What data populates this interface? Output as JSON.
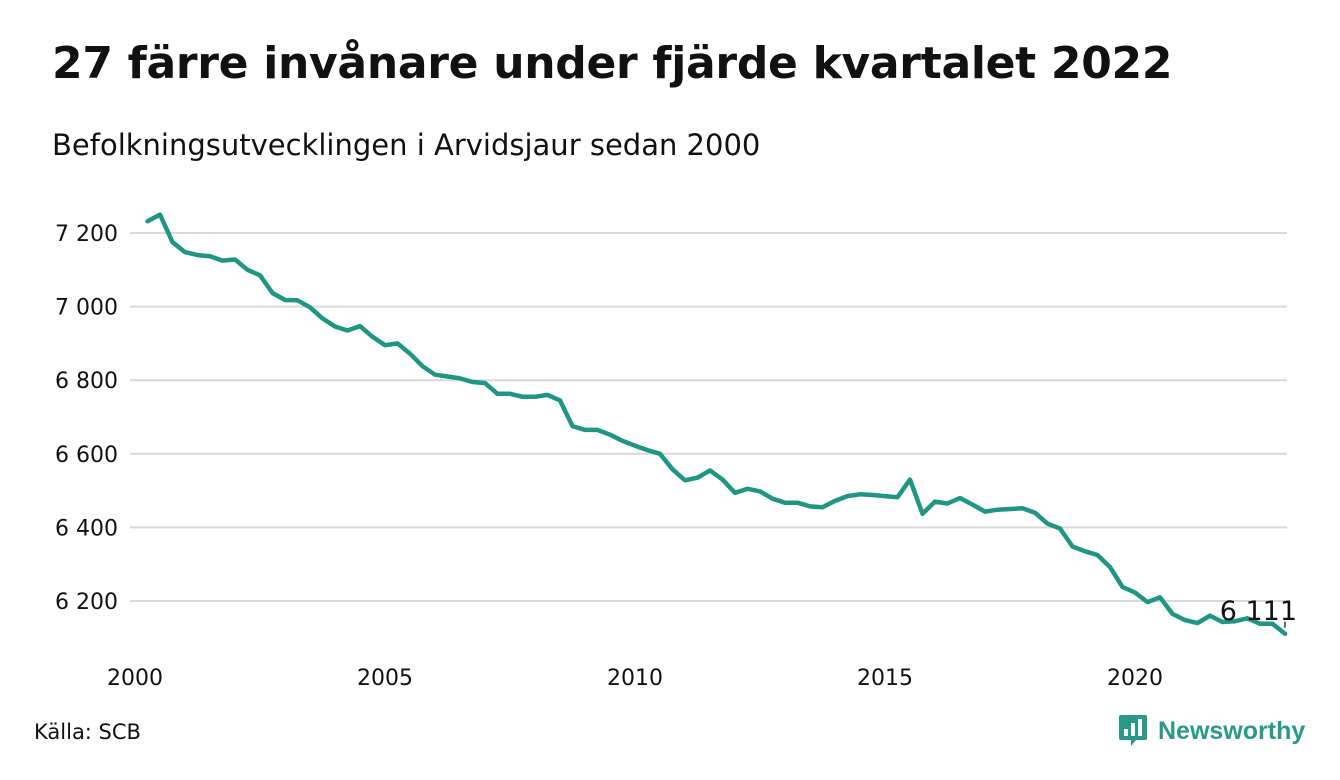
{
  "header": {
    "title": "27 färre invånare under fjärde kvartalet 2022",
    "subtitle": "Befolkningsutvecklingen i Arvidsjaur sedan 2000"
  },
  "footer": {
    "source": "Källa: SCB",
    "brand": "Newsworthy",
    "brand_icon": "bar-chart-speech-bubble-icon"
  },
  "colors": {
    "line": "#1f9683",
    "grid": "#d9d9d9",
    "brand": "#2a9a88"
  },
  "chart_data": {
    "type": "line",
    "title": "27 färre invånare under fjärde kvartalet 2022",
    "subtitle": "Befolkningsutvecklingen i Arvidsjaur sedan 2000",
    "xlabel": "",
    "ylabel": "",
    "xlim": [
      2000,
      2023
    ],
    "ylim": [
      6080,
      7260
    ],
    "x_ticks": [
      2000,
      2005,
      2010,
      2015,
      2020
    ],
    "x_tick_labels": [
      "2000",
      "2005",
      "2010",
      "2015",
      "2020"
    ],
    "y_ticks": [
      6200,
      6400,
      6600,
      6800,
      7000,
      7200
    ],
    "y_tick_labels": [
      "6 200",
      "6 400",
      "6 600",
      "6 800",
      "7 000",
      "7 200"
    ],
    "grid": true,
    "legend": "none",
    "series": [
      {
        "x": [
          2000.25,
          2000.5,
          2000.75,
          2001.0,
          2001.25,
          2001.5,
          2001.75,
          2002.0,
          2002.25,
          2002.5,
          2002.75,
          2003.0,
          2003.25,
          2003.5,
          2003.75,
          2004.0,
          2004.25,
          2004.5,
          2004.75,
          2005.0,
          2005.25,
          2005.5,
          2005.75,
          2006.0,
          2006.25,
          2006.5,
          2006.75,
          2007.0,
          2007.25,
          2007.5,
          2007.75,
          2008.0,
          2008.25,
          2008.5,
          2008.75,
          2009.0,
          2009.25,
          2009.5,
          2009.75,
          2010.0,
          2010.25,
          2010.5,
          2010.75,
          2011.0,
          2011.25,
          2011.5,
          2011.75,
          2012.0,
          2012.25,
          2012.5,
          2012.75,
          2013.0,
          2013.25,
          2013.5,
          2013.75,
          2014.0,
          2014.25,
          2014.5,
          2014.75,
          2015.0,
          2015.25,
          2015.5,
          2015.75,
          2016.0,
          2016.25,
          2016.5,
          2016.75,
          2017.0,
          2017.25,
          2017.5,
          2017.75,
          2018.0,
          2018.25,
          2018.5,
          2018.75,
          2019.0,
          2019.25,
          2019.5,
          2019.75,
          2020.0,
          2020.25,
          2020.5,
          2020.75,
          2021.0,
          2021.25,
          2021.5,
          2021.75,
          2022.0,
          2022.25,
          2022.5,
          2022.75,
          2023.0
        ],
        "values": [
          7232,
          7250,
          7175,
          7148,
          7140,
          7137,
          7125,
          7128,
          7100,
          7085,
          7037,
          7018,
          7017,
          6998,
          6968,
          6946,
          6935,
          6947,
          6918,
          6895,
          6900,
          6872,
          6838,
          6815,
          6810,
          6805,
          6795,
          6792,
          6763,
          6763,
          6755,
          6755,
          6760,
          6745,
          6675,
          6665,
          6665,
          6652,
          6635,
          6622,
          6610,
          6600,
          6558,
          6528,
          6535,
          6555,
          6530,
          6494,
          6505,
          6498,
          6478,
          6467,
          6467,
          6457,
          6455,
          6472,
          6485,
          6490,
          6488,
          6485,
          6482,
          6530,
          6437,
          6470,
          6465,
          6480,
          6462,
          6443,
          6448,
          6450,
          6452,
          6440,
          6410,
          6397,
          6348,
          6335,
          6325,
          6292,
          6238,
          6223,
          6197,
          6210,
          6165,
          6148,
          6140,
          6160,
          6143,
          6145,
          6153,
          6138,
          6138,
          6111
        ]
      }
    ],
    "annotations": [
      {
        "x": 2023.0,
        "value": 6111,
        "label": "6 111"
      }
    ]
  }
}
